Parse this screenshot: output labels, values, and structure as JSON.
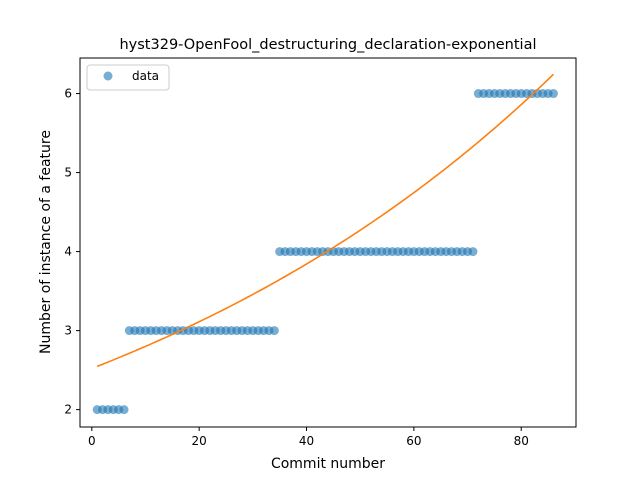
{
  "chart_data": {
    "type": "scatter",
    "title": "hyst329-OpenFool_destructuring_declaration-exponential",
    "xlabel": "Commit number",
    "ylabel": "Number of instance of a feature",
    "xlim": [
      -2.2,
      90.2
    ],
    "ylim": [
      1.78,
      6.45
    ],
    "xticks": [
      0,
      20,
      40,
      60,
      80
    ],
    "yticks": [
      2,
      3,
      4,
      5,
      6
    ],
    "legend": {
      "position": "upper-left",
      "entries": [
        "data"
      ]
    },
    "colors": {
      "data": "#1f77b4",
      "fit": "#ff7f0e"
    },
    "series": [
      {
        "name": "data",
        "kind": "scatter",
        "segments": [
          {
            "x_start": 1,
            "x_end": 6,
            "y": 2
          },
          {
            "x_start": 7,
            "x_end": 34,
            "y": 3
          },
          {
            "x_start": 35,
            "x_end": 71,
            "y": 4
          },
          {
            "x_start": 72,
            "x_end": 86,
            "y": 6
          }
        ]
      },
      {
        "kind": "line",
        "model": "exponential",
        "a": 2.52,
        "b": 0.01055,
        "x_range": [
          1,
          86
        ]
      }
    ]
  }
}
